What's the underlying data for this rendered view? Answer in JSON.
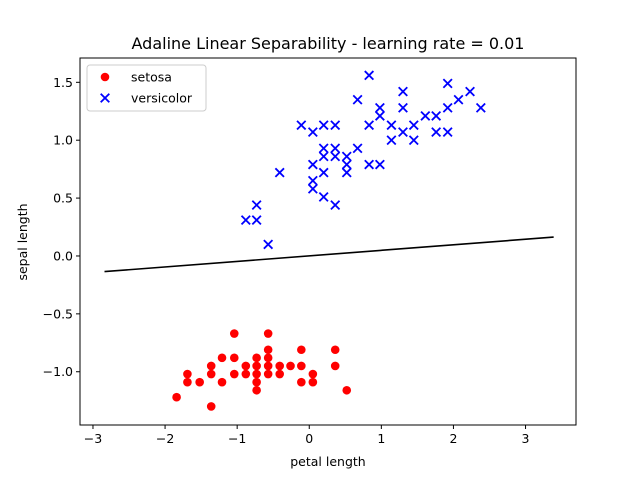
{
  "chart_data": {
    "type": "scatter",
    "title": "Adaline Linear Separability - learning rate = 0.01",
    "xlabel": "petal length",
    "ylabel": "sepal length",
    "xlim": [
      -3.18,
      3.7
    ],
    "ylim": [
      -1.46,
      1.71
    ],
    "xticks": [
      -3,
      -2,
      -1,
      0,
      1,
      2,
      3
    ],
    "yticks": [
      -1.0,
      -0.5,
      0.0,
      0.5,
      1.0,
      1.5
    ],
    "xtick_labels": [
      "−3",
      "−2",
      "−1",
      "0",
      "1",
      "2",
      "3"
    ],
    "ytick_labels": [
      "−1.0",
      "−0.5",
      "0.0",
      "0.5",
      "1.0",
      "1.5"
    ],
    "grid": false,
    "legend_position": "top-left",
    "series": [
      {
        "name": "setosa",
        "marker": "circle",
        "color": "#ff0000",
        "points": [
          [
            -1.84,
            -1.22
          ],
          [
            -1.69,
            -1.02
          ],
          [
            -1.69,
            -1.09
          ],
          [
            -1.52,
            -1.09
          ],
          [
            -1.36,
            -1.3
          ],
          [
            -1.36,
            -1.02
          ],
          [
            -1.36,
            -0.95
          ],
          [
            -1.21,
            -0.88
          ],
          [
            -1.21,
            -1.09
          ],
          [
            -1.04,
            -0.67
          ],
          [
            -1.04,
            -0.88
          ],
          [
            -1.04,
            -1.02
          ],
          [
            -0.88,
            -0.95
          ],
          [
            -0.88,
            -1.02
          ],
          [
            -0.73,
            -0.88
          ],
          [
            -0.73,
            -0.95
          ],
          [
            -0.73,
            -1.02
          ],
          [
            -0.73,
            -1.09
          ],
          [
            -0.73,
            -1.16
          ],
          [
            -0.57,
            -0.67
          ],
          [
            -0.57,
            -0.81
          ],
          [
            -0.57,
            -0.88
          ],
          [
            -0.57,
            -0.95
          ],
          [
            -0.57,
            -1.02
          ],
          [
            -0.41,
            -0.95
          ],
          [
            -0.41,
            -1.02
          ],
          [
            -0.26,
            -0.95
          ],
          [
            -0.11,
            -0.81
          ],
          [
            -0.11,
            -0.95
          ],
          [
            -0.11,
            -1.09
          ],
          [
            0.05,
            -1.02
          ],
          [
            0.05,
            -1.09
          ],
          [
            0.36,
            -0.81
          ],
          [
            0.36,
            -0.95
          ],
          [
            0.52,
            -1.16
          ]
        ]
      },
      {
        "name": "versicolor",
        "marker": "x",
        "color": "#0000ff",
        "points": [
          [
            -0.88,
            0.31
          ],
          [
            -0.73,
            0.31
          ],
          [
            -0.73,
            0.44
          ],
          [
            -0.57,
            0.1
          ],
          [
            -0.41,
            0.72
          ],
          [
            -0.11,
            1.13
          ],
          [
            0.05,
            1.07
          ],
          [
            0.05,
            0.79
          ],
          [
            0.05,
            0.65
          ],
          [
            0.05,
            0.58
          ],
          [
            0.2,
            0.93
          ],
          [
            0.2,
            0.86
          ],
          [
            0.2,
            0.72
          ],
          [
            0.2,
            0.51
          ],
          [
            0.2,
            1.13
          ],
          [
            0.36,
            1.13
          ],
          [
            0.36,
            0.93
          ],
          [
            0.36,
            0.86
          ],
          [
            0.36,
            0.44
          ],
          [
            0.52,
            0.86
          ],
          [
            0.52,
            0.79
          ],
          [
            0.52,
            0.72
          ],
          [
            0.67,
            1.35
          ],
          [
            0.67,
            0.93
          ],
          [
            0.83,
            1.56
          ],
          [
            0.83,
            1.13
          ],
          [
            0.83,
            0.79
          ],
          [
            0.98,
            1.28
          ],
          [
            0.98,
            1.21
          ],
          [
            0.98,
            0.79
          ],
          [
            1.14,
            1.13
          ],
          [
            1.14,
            1.0
          ],
          [
            1.3,
            1.42
          ],
          [
            1.3,
            1.28
          ],
          [
            1.3,
            1.07
          ],
          [
            1.45,
            1.13
          ],
          [
            1.45,
            1.0
          ],
          [
            1.61,
            1.21
          ],
          [
            1.76,
            1.21
          ],
          [
            1.76,
            1.07
          ],
          [
            1.92,
            1.49
          ],
          [
            1.92,
            1.28
          ],
          [
            1.92,
            1.07
          ],
          [
            2.07,
            1.35
          ],
          [
            2.23,
            1.42
          ],
          [
            2.38,
            1.28
          ]
        ]
      }
    ],
    "decision_boundary": {
      "color": "#000000",
      "points": [
        [
          -2.84,
          -0.135
        ],
        [
          3.39,
          0.163
        ]
      ]
    }
  }
}
